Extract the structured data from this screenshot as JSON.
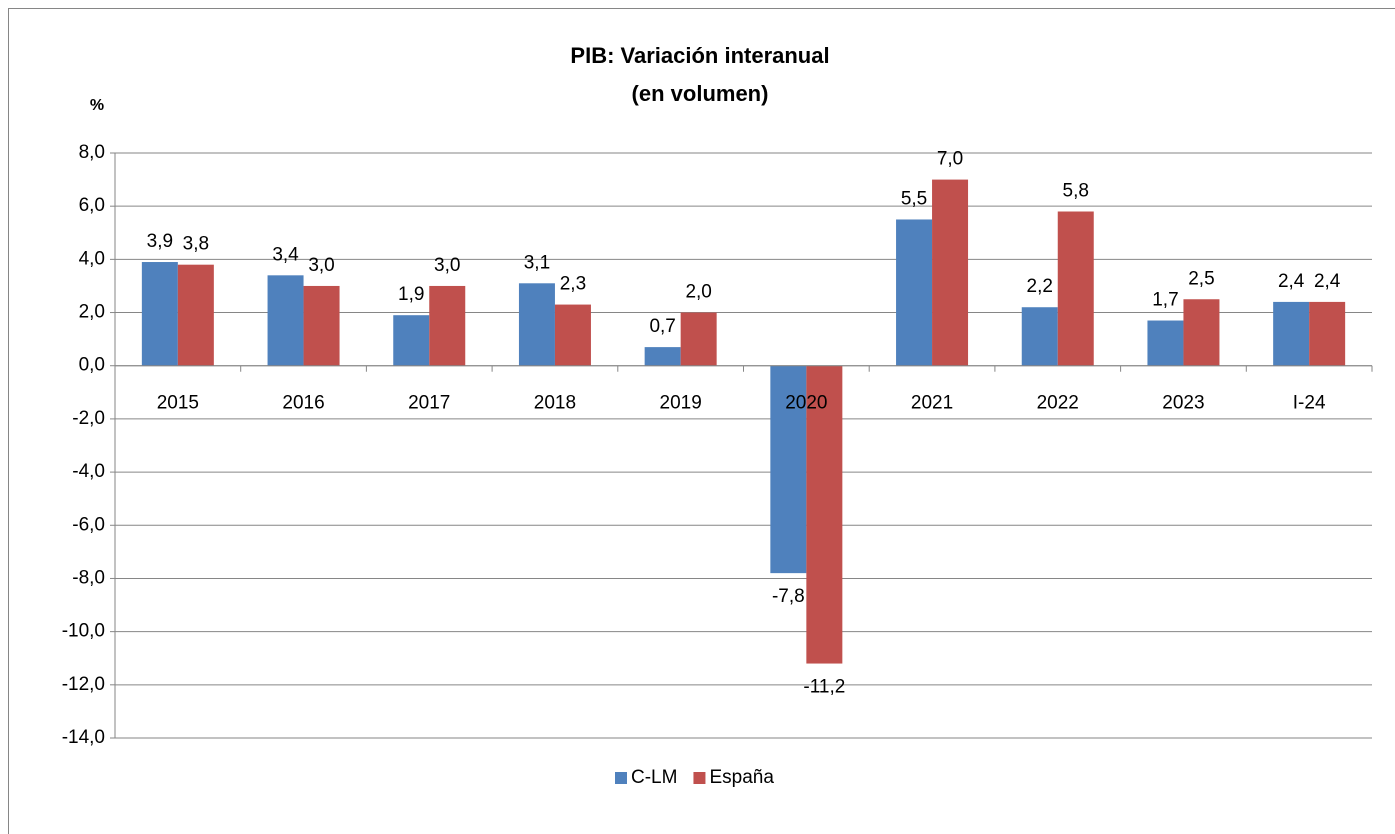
{
  "chart_data": {
    "type": "bar",
    "title": "PIB: Variación interanual",
    "subtitle": "(en volumen)",
    "y_label": "%",
    "categories": [
      "2015",
      "2016",
      "2017",
      "2018",
      "2019",
      "2020",
      "2021",
      "2022",
      "2023",
      "I-24"
    ],
    "series": [
      {
        "name": "C-LM",
        "color": "#4f81bd",
        "values": [
          3.9,
          3.4,
          1.9,
          3.1,
          0.7,
          -7.8,
          5.5,
          2.2,
          1.7,
          2.4
        ],
        "value_labels": [
          "3,9",
          "3,4",
          "1,9",
          "3,1",
          "0,7",
          "-7,8",
          "5,5",
          "2,2",
          "1,7",
          "2,4"
        ]
      },
      {
        "name": "España",
        "color": "#c0504d",
        "values": [
          3.8,
          3.0,
          3.0,
          2.3,
          2.0,
          -11.2,
          7.0,
          5.8,
          2.5,
          2.4
        ],
        "value_labels": [
          "3,8",
          "3,0",
          "3,0",
          "2,3",
          "2,0",
          "-11,2",
          "7,0",
          "5,8",
          "2,5",
          "2,4"
        ]
      }
    ],
    "ylim": [
      -14,
      8
    ],
    "yticks": [
      {
        "value": -14,
        "label": "-14,0"
      },
      {
        "value": -12,
        "label": "-12,0"
      },
      {
        "value": -10,
        "label": "-10,0"
      },
      {
        "value": -8,
        "label": "-8,0"
      },
      {
        "value": -6,
        "label": "-6,0"
      },
      {
        "value": -4,
        "label": "-4,0"
      },
      {
        "value": -2,
        "label": "-2,0"
      },
      {
        "value": 0,
        "label": "0,0"
      },
      {
        "value": 2,
        "label": "2,0"
      },
      {
        "value": 4,
        "label": "4,0"
      },
      {
        "value": 6,
        "label": "6,0"
      },
      {
        "value": 8,
        "label": "8,0"
      }
    ],
    "grid": true,
    "legend": "bottom"
  }
}
